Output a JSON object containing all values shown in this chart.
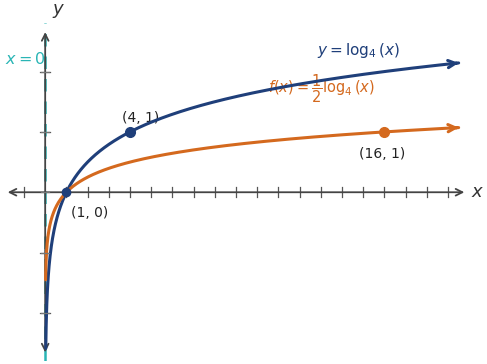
{
  "blue_color": "#1f3f7a",
  "orange_color": "#d4691e",
  "teal_color": "#2ab5b5",
  "background_color": "#ffffff",
  "point1_label": "(1, 0)",
  "point2_label": "(4, 1)",
  "point3_label": "(16, 1)",
  "asymptote_label": "x = 0",
  "xlim": [
    -2.0,
    20.0
  ],
  "ylim": [
    -2.8,
    2.8
  ],
  "x_tick_spacing": 2,
  "y_tick_spacing": 1
}
